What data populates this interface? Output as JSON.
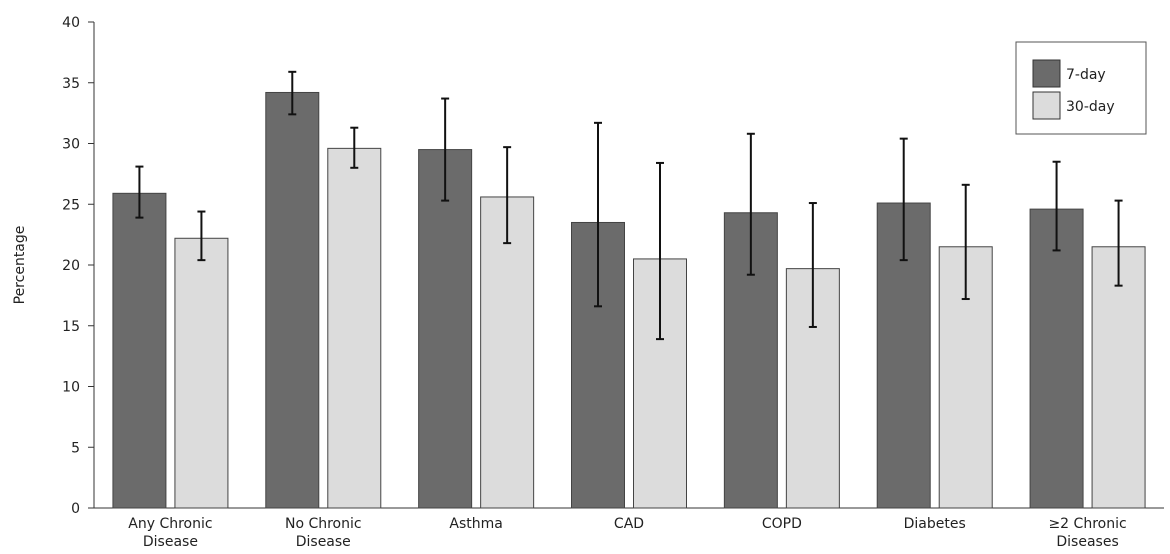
{
  "chart_data": {
    "type": "bar",
    "title": "",
    "xlabel": "",
    "ylabel": "Percentage",
    "ylim": [
      0,
      40
    ],
    "yticks": [
      0,
      5,
      10,
      15,
      20,
      25,
      30,
      35,
      40
    ],
    "grid": false,
    "legend_position": "top-right",
    "categories": [
      [
        "Any Chronic",
        "Disease"
      ],
      [
        "No Chronic",
        "Disease"
      ],
      [
        "Asthma"
      ],
      [
        "CAD"
      ],
      [
        "COPD"
      ],
      [
        "Diabetes"
      ],
      [
        "≥2 Chronic",
        "Diseases"
      ]
    ],
    "series": [
      {
        "name": "7-day",
        "color": "#6b6b6b",
        "values": [
          25.9,
          34.2,
          29.5,
          23.5,
          24.3,
          25.1,
          24.6
        ],
        "error_low": [
          23.9,
          32.4,
          25.3,
          16.6,
          19.2,
          20.4,
          21.2
        ],
        "error_high": [
          28.1,
          35.9,
          33.7,
          31.7,
          30.8,
          30.4,
          28.5
        ]
      },
      {
        "name": "30-day",
        "color": "#dcdcdc",
        "values": [
          22.2,
          29.6,
          25.6,
          20.5,
          19.7,
          21.5,
          21.5
        ],
        "error_low": [
          20.4,
          28.0,
          21.8,
          13.9,
          14.9,
          17.2,
          18.3
        ],
        "error_high": [
          24.4,
          31.3,
          29.7,
          28.4,
          25.1,
          26.6,
          25.3
        ]
      }
    ]
  }
}
